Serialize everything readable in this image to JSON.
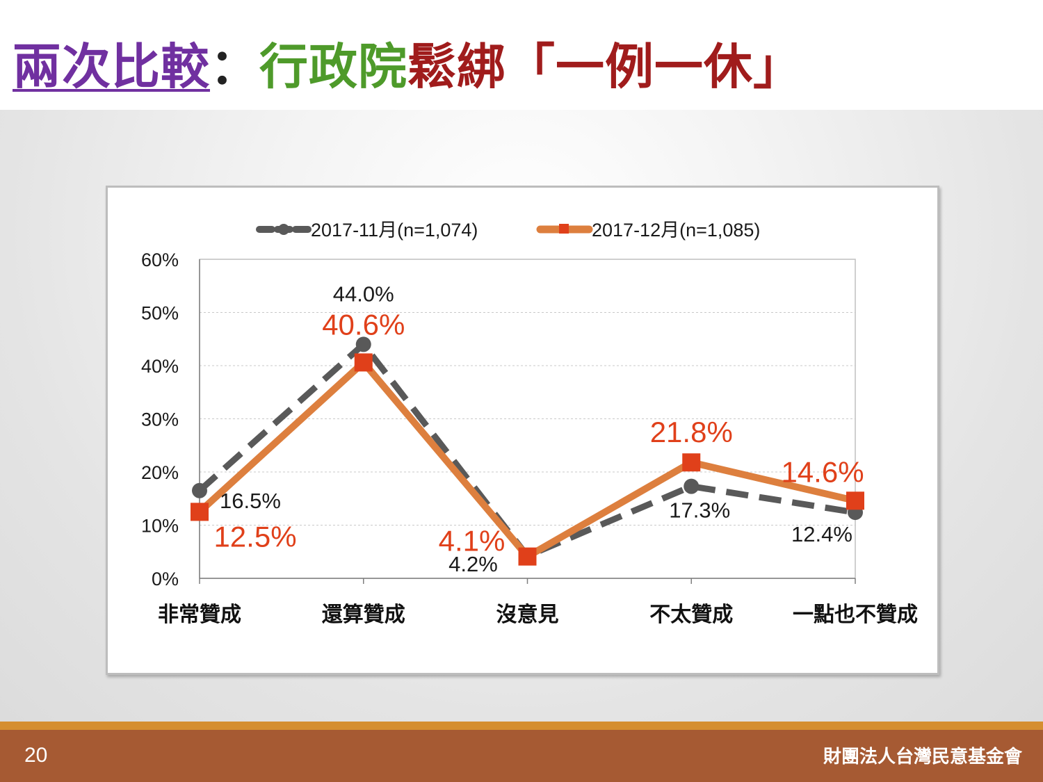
{
  "title": {
    "part1": "兩次比較",
    "separator": "：",
    "part2": "行政院",
    "part3": "鬆綁「一例一休」"
  },
  "footer": {
    "page_number": "20",
    "organization": "財團法人台灣民意基金會"
  },
  "colors": {
    "series1": "#595959",
    "series2_line": "#dd7f3e",
    "series2_marker": "#e0401a",
    "series2_label": "#e0401a",
    "footer": "#a65a33",
    "footer_stripe": "#d58e30"
  },
  "chart_data": {
    "type": "line",
    "categories": [
      "非常贊成",
      "還算贊成",
      "沒意見",
      "不太贊成",
      "一點也不贊成"
    ],
    "y_ticks": [
      "60%",
      "50%",
      "40%",
      "30%",
      "20%",
      "10%",
      "0%"
    ],
    "ylim": [
      0,
      60
    ],
    "grid": true,
    "legend_position": "top",
    "series": [
      {
        "name": "2017-11月(n=1,074)",
        "style": "dashed-circle",
        "values": [
          16.5,
          44.0,
          4.2,
          17.3,
          12.4
        ],
        "labels": [
          "16.5%",
          "44.0%",
          "4.2%",
          "17.3%",
          "12.4%"
        ]
      },
      {
        "name": "2017-12月(n=1,085)",
        "style": "solid-square",
        "values": [
          12.5,
          40.6,
          4.1,
          21.8,
          14.6
        ],
        "labels": [
          "12.5%",
          "40.6%",
          "4.1%",
          "21.8%",
          "14.6%"
        ]
      }
    ]
  }
}
